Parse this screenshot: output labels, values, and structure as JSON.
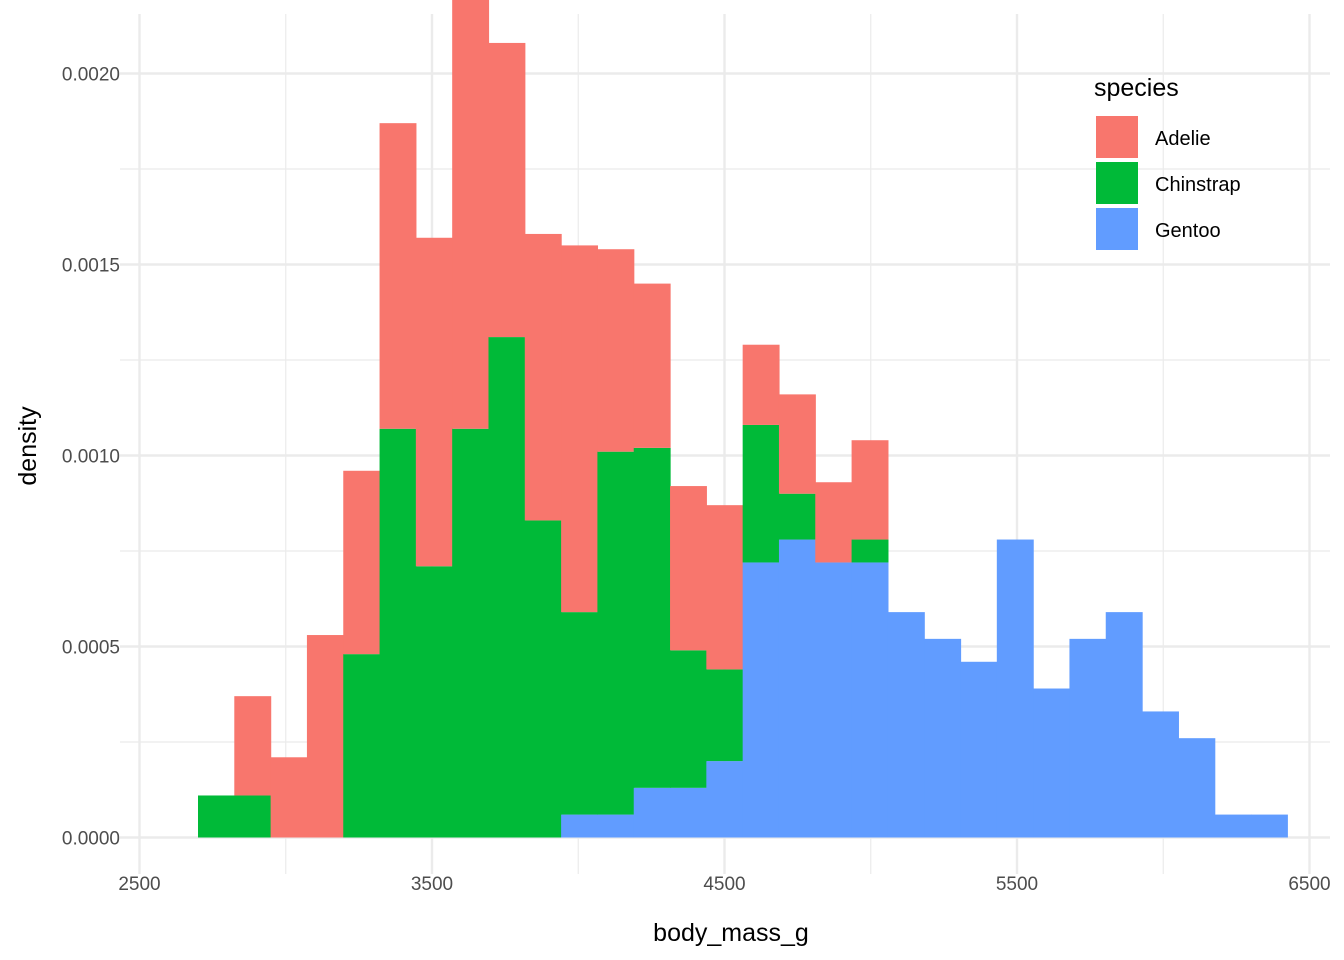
{
  "chart_data": {
    "type": "bar",
    "subtype": "stacked-histogram",
    "title": "",
    "xlabel": "body_mass_g",
    "ylabel": "density",
    "xlim": [
      2500,
      6500
    ],
    "ylim": [
      0,
      0.00213
    ],
    "x_ticks": [
      2500,
      3500,
      4500,
      5500,
      6500
    ],
    "x_tick_labels": [
      "2500",
      "3500",
      "4500",
      "5500",
      "6500"
    ],
    "y_ticks": [
      0,
      0.0005,
      0.001,
      0.0015,
      0.002
    ],
    "y_tick_labels": [
      "0.0000",
      "0.0005",
      "0.0010",
      "0.0015",
      "0.0020"
    ],
    "grid": true,
    "legend": {
      "title": "species",
      "placement": "top-right inside",
      "entries": [
        "Adelie",
        "Chinstrap",
        "Gentoo"
      ]
    },
    "stacking_order_bottom_to_top": [
      "Gentoo",
      "Chinstrap",
      "Adelie"
    ],
    "bin_width": 124.1,
    "bin_edges": [
      2700,
      2824.1,
      2948.3,
      3072.4,
      3196.6,
      3320.7,
      3444.8,
      3569.0,
      3693.1,
      3817.2,
      3941.4,
      4065.5,
      4189.7,
      4313.8,
      4437.9,
      4562.1,
      4686.2,
      4810.3,
      4934.5,
      5058.6,
      5182.8,
      5306.9,
      5431.0,
      5555.2,
      5679.3,
      5803.4,
      5927.6,
      6051.7,
      6175.9,
      6300.0,
      6424.1
    ],
    "series": [
      {
        "name": "Adelie",
        "color": "#F8766D",
        "values": [
          0,
          0.00026,
          0.00021,
          0.00053,
          0.00048,
          0.0008,
          0.00086,
          0.00115,
          0.00077,
          0.00075,
          0.00096,
          0.00053,
          0.00043,
          0.00043,
          0.00043,
          0.00021,
          0.00026,
          0.00021,
          0.00026,
          0,
          0,
          0,
          0,
          0,
          0,
          0,
          0,
          0,
          0,
          0
        ]
      },
      {
        "name": "Chinstrap",
        "color": "#00BA38",
        "values": [
          0.00011,
          0.00011,
          0,
          0,
          0.00048,
          0.00107,
          0.00071,
          0.00107,
          0.00131,
          0.00083,
          0.00053,
          0.00095,
          0.00089,
          0.00036,
          0.00024,
          0.00036,
          0.00012,
          0,
          6e-05,
          0,
          0,
          0,
          0,
          0,
          0,
          0,
          0,
          0,
          0,
          0
        ]
      },
      {
        "name": "Gentoo",
        "color": "#619CFF",
        "values": [
          0,
          0,
          0,
          0,
          0,
          0,
          0,
          0,
          0,
          0,
          6e-05,
          6e-05,
          0.00013,
          0.00013,
          0.0002,
          0.00072,
          0.00078,
          0.00072,
          0.00072,
          0.00059,
          0.00052,
          0.00046,
          0.00078,
          0.00039,
          0.00052,
          0.00059,
          0.00033,
          0.00026,
          6e-05,
          6e-05
        ]
      }
    ]
  }
}
